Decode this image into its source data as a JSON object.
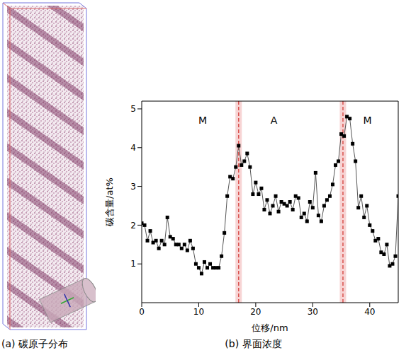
{
  "chart_data": {
    "type": "line",
    "title": "(b) 界面浓度",
    "x_label": "位移/nm",
    "y_label": "碳含量/at%",
    "x": [
      0,
      0.5,
      1,
      1.5,
      2,
      2.5,
      3,
      3.5,
      4,
      4.5,
      5,
      5.5,
      6,
      6.5,
      7,
      7.5,
      8,
      8.5,
      9,
      9.5,
      10,
      10.5,
      11,
      11.5,
      12,
      12.5,
      13,
      13.5,
      14,
      14.5,
      15,
      15.5,
      16,
      16.5,
      17,
      17.5,
      18,
      18.5,
      19,
      19.5,
      20,
      20.5,
      21,
      21.5,
      22,
      22.5,
      23,
      23.5,
      24,
      24.5,
      25,
      25.5,
      26,
      26.5,
      27,
      27.5,
      28,
      28.5,
      29,
      29.5,
      30,
      30.5,
      31,
      31.5,
      32,
      32.5,
      33,
      33.5,
      34,
      34.5,
      35,
      35.5,
      36,
      36.5,
      37,
      37.5,
      38,
      38.5,
      39,
      39.5,
      40,
      40.5,
      41,
      41.5,
      42,
      42.5,
      43,
      43.5,
      44,
      44.5,
      45
    ],
    "values": [
      2.05,
      2.0,
      1.6,
      1.85,
      1.55,
      1.6,
      1.4,
      1.6,
      1.5,
      2.2,
      1.7,
      1.65,
      1.5,
      1.5,
      1.4,
      1.5,
      1.35,
      1.6,
      1.4,
      1.0,
      0.9,
      0.75,
      1.05,
      0.9,
      1.0,
      0.9,
      0.9,
      0.9,
      1.2,
      1.8,
      2.75,
      3.25,
      3.2,
      3.5,
      4.05,
      3.55,
      3.65,
      3.85,
      3.5,
      2.8,
      3.1,
      2.8,
      2.95,
      2.4,
      2.65,
      2.3,
      2.5,
      2.75,
      2.35,
      2.6,
      2.55,
      2.5,
      2.6,
      2.4,
      2.75,
      2.7,
      2.2,
      2.3,
      2.1,
      2.6,
      2.45,
      3.35,
      2.25,
      2.1,
      2.5,
      2.65,
      2.75,
      3.05,
      3.55,
      3.65,
      4.35,
      4.3,
      4.8,
      4.75,
      4.1,
      3.65,
      2.45,
      2.75,
      2.2,
      2.5,
      2.0,
      1.85,
      1.6,
      1.65,
      1.3,
      1.25,
      1.5,
      0.95,
      1.0,
      1.2,
      2.75
    ],
    "color": "#000000",
    "marker": "square",
    "xlim": [
      0,
      45
    ],
    "ylim": [
      0,
      5.2
    ],
    "xticks": [
      0,
      10,
      20,
      30,
      40
    ],
    "yticks": [
      1,
      2,
      3,
      4,
      5
    ],
    "grid": false,
    "annotations": [
      {
        "text": "M",
        "x": 10.7,
        "y": 4.7
      },
      {
        "text": "A",
        "x": 23.2,
        "y": 4.7
      },
      {
        "text": "M",
        "x": 39.6,
        "y": 4.7
      }
    ],
    "reference_lines": [
      {
        "x": 17,
        "color": "#d9534f",
        "line_style": "dashed"
      },
      {
        "x": 35.3,
        "color": "#d9534f",
        "line_style": "dashed"
      }
    ]
  },
  "panel_a": {
    "caption": "(a) 碳原子分布"
  }
}
